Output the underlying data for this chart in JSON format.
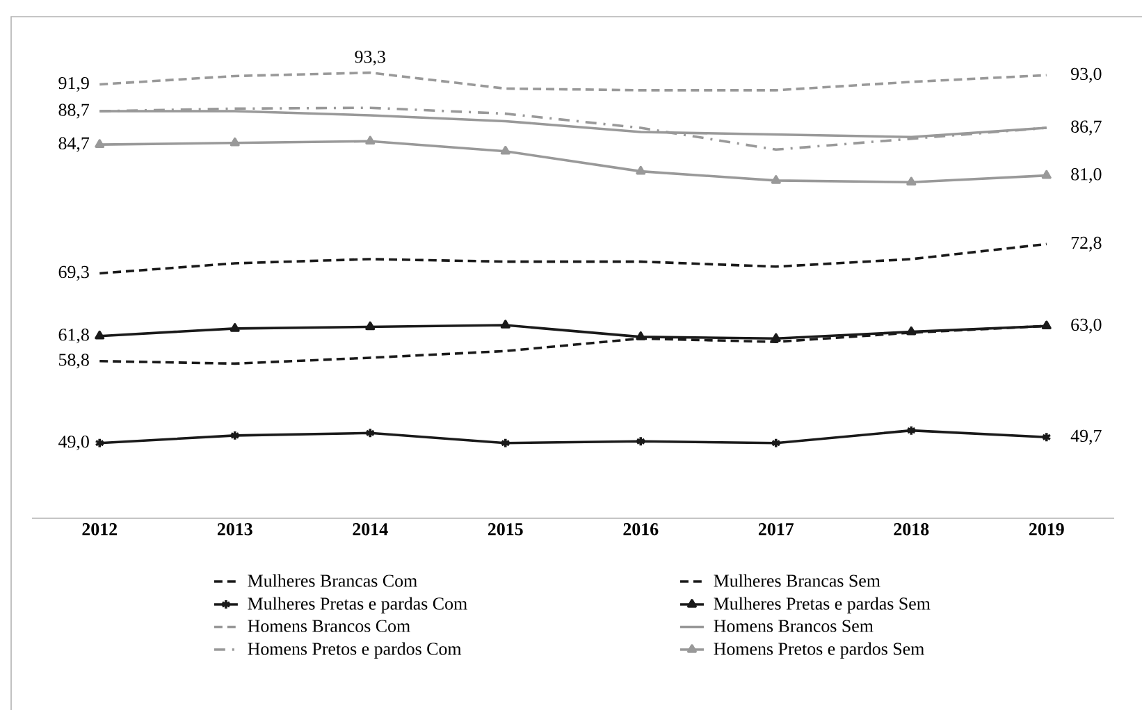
{
  "chart_data": {
    "type": "line",
    "categories": [
      "2012",
      "2013",
      "2014",
      "2015",
      "2016",
      "2017",
      "2018",
      "2019"
    ],
    "ylim": [
      40,
      100
    ],
    "tick_labels": "x",
    "legend": "bottom",
    "grid": false,
    "series": [
      {
        "name": "Mulheres Brancas Com",
        "color": "#1a1a1a",
        "line_style": "dashed",
        "values": [
          58.8,
          58.5,
          59.2,
          60.0,
          61.5,
          61.1,
          62.2,
          63.0
        ],
        "value_labels": [
          "58,8",
          null,
          null,
          null,
          null,
          null,
          null,
          null
        ]
      },
      {
        "name": "Mulheres Brancas Sem",
        "color": "#1a1a1a",
        "line_style": "dashed",
        "values": [
          69.3,
          70.5,
          71.0,
          70.7,
          70.7,
          70.1,
          71.0,
          72.8
        ],
        "value_labels": [
          "69,3",
          null,
          null,
          null,
          null,
          null,
          null,
          "72,8"
        ]
      },
      {
        "name": "Mulheres Pretas e pardas Com",
        "color": "#1a1a1a",
        "line_style": "solid",
        "marker": "cross",
        "values": [
          49.0,
          49.9,
          50.2,
          49.0,
          49.2,
          49.0,
          50.5,
          49.7
        ],
        "value_labels": [
          "49,0",
          null,
          null,
          null,
          null,
          null,
          null,
          "49,7"
        ]
      },
      {
        "name": "Mulheres Pretas e pardas Sem",
        "color": "#1a1a1a",
        "line_style": "solid",
        "marker": "triangle",
        "values": [
          61.8,
          62.7,
          62.9,
          63.1,
          61.7,
          61.5,
          62.3,
          63.0
        ],
        "value_labels": [
          "61,8",
          null,
          null,
          null,
          null,
          null,
          null,
          "63,0"
        ]
      },
      {
        "name": "Homens Brancos Com",
        "color": "#999999",
        "line_style": "dashed",
        "values": [
          91.9,
          92.9,
          93.3,
          91.4,
          91.2,
          91.2,
          92.2,
          93.0
        ],
        "value_labels": [
          "91,9",
          null,
          "93,3",
          null,
          null,
          null,
          null,
          "93,0"
        ]
      },
      {
        "name": "Homens Brancos Sem",
        "color": "#999999",
        "line_style": "solid",
        "values": [
          88.7,
          88.7,
          88.2,
          87.5,
          86.2,
          85.9,
          85.6,
          86.7
        ],
        "value_labels": [
          "88,7",
          null,
          null,
          null,
          null,
          null,
          null,
          "86,7"
        ]
      },
      {
        "name": "Homens Pretos e pardos Com",
        "color": "#999999",
        "line_style": "dashdot",
        "values": [
          88.7,
          89.0,
          89.1,
          88.4,
          86.7,
          84.1,
          85.4,
          86.7
        ]
      },
      {
        "name": "Homens Pretos e pardos Sem",
        "color": "#999999",
        "line_style": "solid",
        "marker": "triangle",
        "values": [
          84.7,
          84.9,
          85.1,
          83.9,
          81.5,
          80.4,
          80.2,
          81.0
        ],
        "value_labels": [
          "84,7",
          null,
          null,
          null,
          null,
          null,
          null,
          "81,0"
        ]
      }
    ]
  }
}
